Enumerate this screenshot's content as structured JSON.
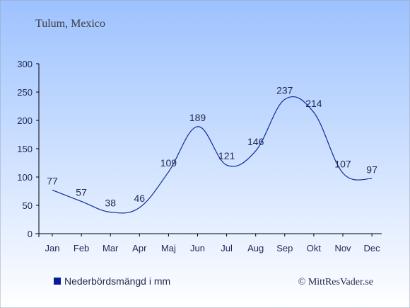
{
  "location": "Tulum, Mexico",
  "copyright": "© MittResVader.se",
  "colors": {
    "line": "#0b2e9a",
    "legend_marker": "#0a1a9a",
    "bg_top": "#9dc2ff",
    "bg_bottom": "#ffffff",
    "text": "#1e2850",
    "title": "#3c3c3c"
  },
  "chart_data": {
    "type": "line",
    "categories": [
      "Jan",
      "Feb",
      "Mar",
      "Apr",
      "Maj",
      "Jun",
      "Jul",
      "Aug",
      "Sep",
      "Okt",
      "Nov",
      "Dec"
    ],
    "series": [
      {
        "name": "Nederbördsmängd i mm",
        "values": [
          77,
          57,
          38,
          46,
          109,
          189,
          121,
          146,
          237,
          214,
          107,
          97
        ]
      }
    ],
    "ylim": [
      0,
      300
    ],
    "yticks": [
      0,
      50,
      100,
      150,
      200,
      250,
      300
    ],
    "legend_position": "bottom-left",
    "grid": false,
    "data_labels": true
  }
}
